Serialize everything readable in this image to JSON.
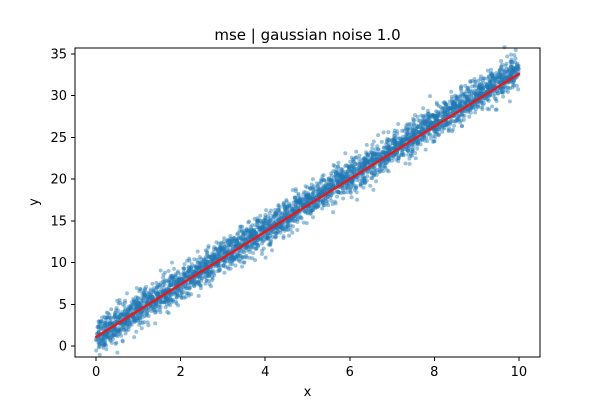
{
  "chart_data": {
    "type": "scatter",
    "title": "mse | gaussian noise 1.0",
    "xlabel": "x",
    "ylabel": "y",
    "xlim": [
      -0.5,
      10.5
    ],
    "ylim": [
      -1.3,
      35.7
    ],
    "xticks": [
      0,
      2,
      4,
      6,
      8,
      10
    ],
    "yticks": [
      0,
      5,
      10,
      15,
      20,
      25,
      30,
      35
    ],
    "grid": false,
    "legend": "none",
    "colors": {
      "scatter": "#1f77b4",
      "fit_line": "#e41a1c"
    },
    "series": [
      {
        "type": "scatter",
        "x": [
          0.0,
          0.25,
          0.5,
          0.75,
          1.0,
          1.25,
          1.5,
          1.75,
          2.0,
          2.25,
          2.5,
          2.75,
          3.0,
          3.25,
          3.5,
          3.75,
          4.0,
          4.25,
          4.5,
          4.75,
          5.0,
          5.25,
          5.5,
          5.75,
          6.0,
          6.25,
          6.5,
          6.75,
          7.0,
          7.25,
          7.5,
          7.75,
          8.0,
          8.25,
          8.5,
          8.75,
          9.0,
          9.25,
          9.5,
          9.75,
          10.0
        ],
        "y_center": [
          1.1,
          1.9,
          2.7,
          3.5,
          4.3,
          5.1,
          5.9,
          6.7,
          7.5,
          8.3,
          9.1,
          9.9,
          10.7,
          11.5,
          12.3,
          13.1,
          13.9,
          14.7,
          15.5,
          16.3,
          17.1,
          17.9,
          18.7,
          19.5,
          20.3,
          21.1,
          21.9,
          22.7,
          23.5,
          24.3,
          25.1,
          25.9,
          26.7,
          27.5,
          28.3,
          29.1,
          29.9,
          30.7,
          31.5,
          32.3,
          33.1
        ],
        "noise_std": 1.0
      },
      {
        "type": "line",
        "x": [
          0,
          10
        ],
        "y": [
          1.1,
          32.6
        ]
      }
    ]
  }
}
